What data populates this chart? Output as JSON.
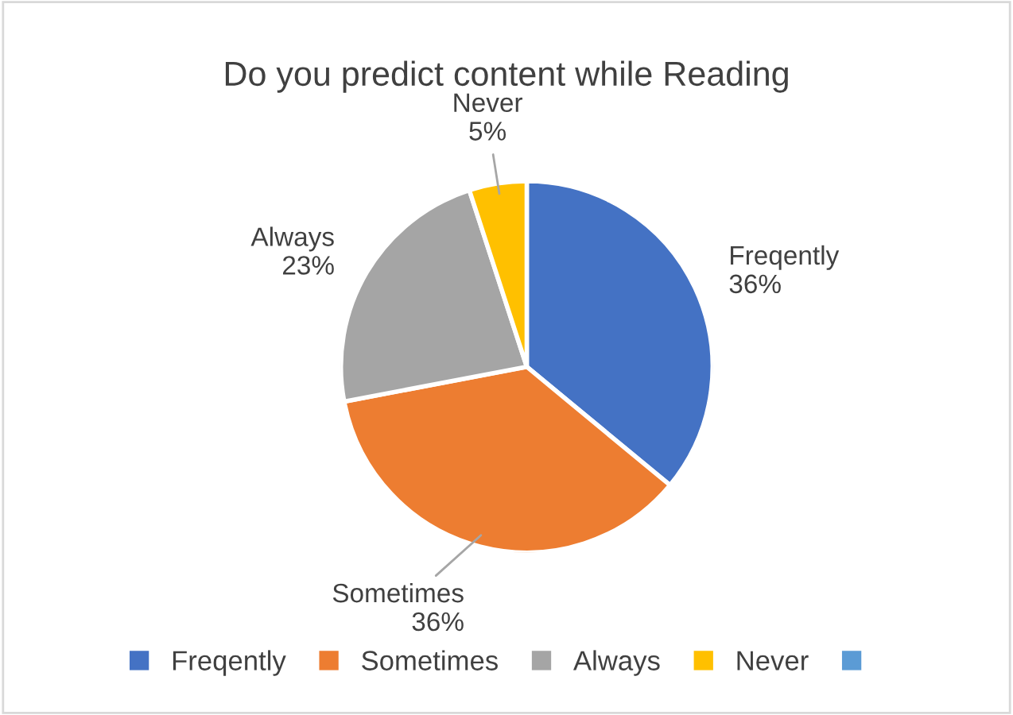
{
  "chart_data": {
    "type": "pie",
    "title": "Do you predict content while Reading",
    "categories": [
      "Freqently",
      "Sometimes",
      "Always",
      "Never",
      null
    ],
    "values": [
      36,
      36,
      23,
      5,
      0
    ],
    "value_labels": [
      "36%",
      "36%",
      "23%",
      "5%",
      null
    ],
    "colors": [
      "#4472c4",
      "#ed7d31",
      "#a5a5a5",
      "#ffc000",
      "#5b9bd5"
    ],
    "legend": "bottom"
  }
}
